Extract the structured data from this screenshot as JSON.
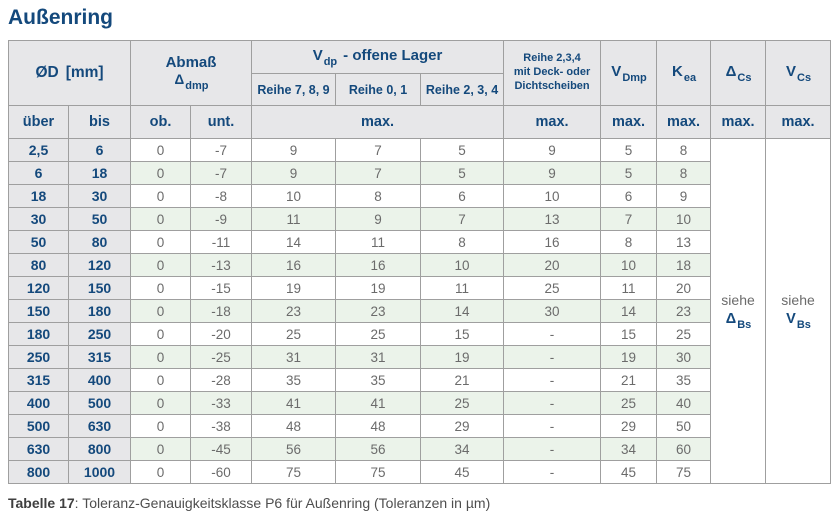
{
  "page": {
    "title": "Außenring",
    "caption": {
      "label": "Tabelle 17",
      "text": ": Toleranz-Genauigkeitsklasse P6 für Außenring (Toleranzen in µm)"
    }
  },
  "colors": {
    "accent_blue": "#14497c",
    "header_bg": "#e7e7e9",
    "row_tint_green": "#ebf3ea",
    "grid_border": "#9f9f9f",
    "value_text_grey": "#6b6b6b"
  },
  "table": {
    "header": {
      "od_symbol": "ØD",
      "od_unit": "[mm]",
      "abmass_line1": "Abmaß",
      "abmass_symbol": "Δ",
      "abmass_subscript": "dmp",
      "vdp_symbol": "V",
      "vdp_subscript": "dp",
      "vdp_rest": "-  offene Lager",
      "reihe_789": "Reihe 7, 8, 9",
      "reihe_01": "Reihe 0, 1",
      "reihe_234": "Reihe 2, 3, 4",
      "deck_label": "Reihe 2,3,4\nmit Deck- oder\nDichtscheiben",
      "vdmp_symbol": "V",
      "vdmp_subscript": "Dmp",
      "kea_symbol": "K",
      "kea_subscript": "ea",
      "dcs_symbol": "Δ",
      "dcs_subscript": "Cs",
      "vcs_symbol": "V",
      "vcs_subscript": "Cs",
      "ueber_label": "über",
      "bis_label": "bis",
      "ob_label": "ob.",
      "unt_label": "unt.",
      "max_label": "max."
    },
    "see_dcs": {
      "word": "siehe",
      "symbol": "Δ",
      "subscript": "Bs"
    },
    "see_vcs": {
      "word": "siehe",
      "symbol": "V",
      "subscript": "Bs"
    },
    "rows": [
      {
        "ueber": "2,5",
        "bis": "6",
        "ob": "0",
        "unt": "-7",
        "reihe789": "9",
        "reihe01": "7",
        "reihe234": "5",
        "deck": "9",
        "vdmp": "5",
        "kea": "8"
      },
      {
        "ueber": "6",
        "bis": "18",
        "ob": "0",
        "unt": "-7",
        "reihe789": "9",
        "reihe01": "7",
        "reihe234": "5",
        "deck": "9",
        "vdmp": "5",
        "kea": "8"
      },
      {
        "ueber": "18",
        "bis": "30",
        "ob": "0",
        "unt": "-8",
        "reihe789": "10",
        "reihe01": "8",
        "reihe234": "6",
        "deck": "10",
        "vdmp": "6",
        "kea": "9"
      },
      {
        "ueber": "30",
        "bis": "50",
        "ob": "0",
        "unt": "-9",
        "reihe789": "11",
        "reihe01": "9",
        "reihe234": "7",
        "deck": "13",
        "vdmp": "7",
        "kea": "10"
      },
      {
        "ueber": "50",
        "bis": "80",
        "ob": "0",
        "unt": "-11",
        "reihe789": "14",
        "reihe01": "11",
        "reihe234": "8",
        "deck": "16",
        "vdmp": "8",
        "kea": "13"
      },
      {
        "ueber": "80",
        "bis": "120",
        "ob": "0",
        "unt": "-13",
        "reihe789": "16",
        "reihe01": "16",
        "reihe234": "10",
        "deck": "20",
        "vdmp": "10",
        "kea": "18"
      },
      {
        "ueber": "120",
        "bis": "150",
        "ob": "0",
        "unt": "-15",
        "reihe789": "19",
        "reihe01": "19",
        "reihe234": "11",
        "deck": "25",
        "vdmp": "11",
        "kea": "20"
      },
      {
        "ueber": "150",
        "bis": "180",
        "ob": "0",
        "unt": "-18",
        "reihe789": "23",
        "reihe01": "23",
        "reihe234": "14",
        "deck": "30",
        "vdmp": "14",
        "kea": "23"
      },
      {
        "ueber": "180",
        "bis": "250",
        "ob": "0",
        "unt": "-20",
        "reihe789": "25",
        "reihe01": "25",
        "reihe234": "15",
        "deck": "-",
        "vdmp": "15",
        "kea": "25"
      },
      {
        "ueber": "250",
        "bis": "315",
        "ob": "0",
        "unt": "-25",
        "reihe789": "31",
        "reihe01": "31",
        "reihe234": "19",
        "deck": "-",
        "vdmp": "19",
        "kea": "30"
      },
      {
        "ueber": "315",
        "bis": "400",
        "ob": "0",
        "unt": "-28",
        "reihe789": "35",
        "reihe01": "35",
        "reihe234": "21",
        "deck": "-",
        "vdmp": "21",
        "kea": "35"
      },
      {
        "ueber": "400",
        "bis": "500",
        "ob": "0",
        "unt": "-33",
        "reihe789": "41",
        "reihe01": "41",
        "reihe234": "25",
        "deck": "-",
        "vdmp": "25",
        "kea": "40"
      },
      {
        "ueber": "500",
        "bis": "630",
        "ob": "0",
        "unt": "-38",
        "reihe789": "48",
        "reihe01": "48",
        "reihe234": "29",
        "deck": "-",
        "vdmp": "29",
        "kea": "50"
      },
      {
        "ueber": "630",
        "bis": "800",
        "ob": "0",
        "unt": "-45",
        "reihe789": "56",
        "reihe01": "56",
        "reihe234": "34",
        "deck": "-",
        "vdmp": "34",
        "kea": "60"
      },
      {
        "ueber": "800",
        "bis": "1000",
        "ob": "0",
        "unt": "-60",
        "reihe789": "75",
        "reihe01": "75",
        "reihe234": "45",
        "deck": "-",
        "vdmp": "45",
        "kea": "75"
      }
    ]
  }
}
